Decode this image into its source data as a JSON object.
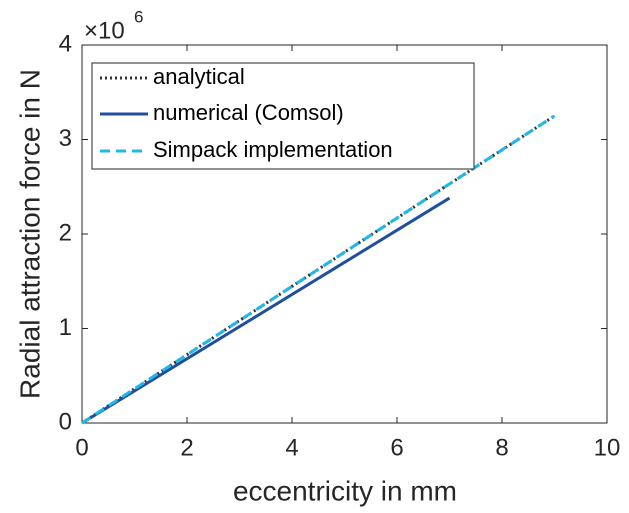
{
  "chart_data": {
    "type": "line",
    "x_label": "eccentricity in mm",
    "y_label": "Radial attraction force in N",
    "y_multiplier": "×10",
    "y_multiplier_exponent": "6",
    "x": [
      0,
      7,
      9
    ],
    "series": [
      {
        "name": "analytical",
        "color": "#333333",
        "style": "dotted",
        "values": [
          0,
          2.53,
          3.25
        ]
      },
      {
        "name": "numerical (Comsol)",
        "color": "#1f4e9c",
        "style": "solid",
        "values": [
          0,
          2.38,
          null
        ]
      },
      {
        "name": "Simpack implementation",
        "color": "#1fb8ea",
        "style": "dashed",
        "values": [
          0,
          2.53,
          3.25
        ]
      }
    ],
    "xlim": [
      0,
      10
    ],
    "xticks": [
      0,
      2,
      4,
      6,
      8,
      10
    ],
    "ylim": [
      0,
      4
    ],
    "yticks": [
      0,
      1,
      2,
      3,
      4
    ],
    "legend": "upper-left",
    "grid": false
  }
}
